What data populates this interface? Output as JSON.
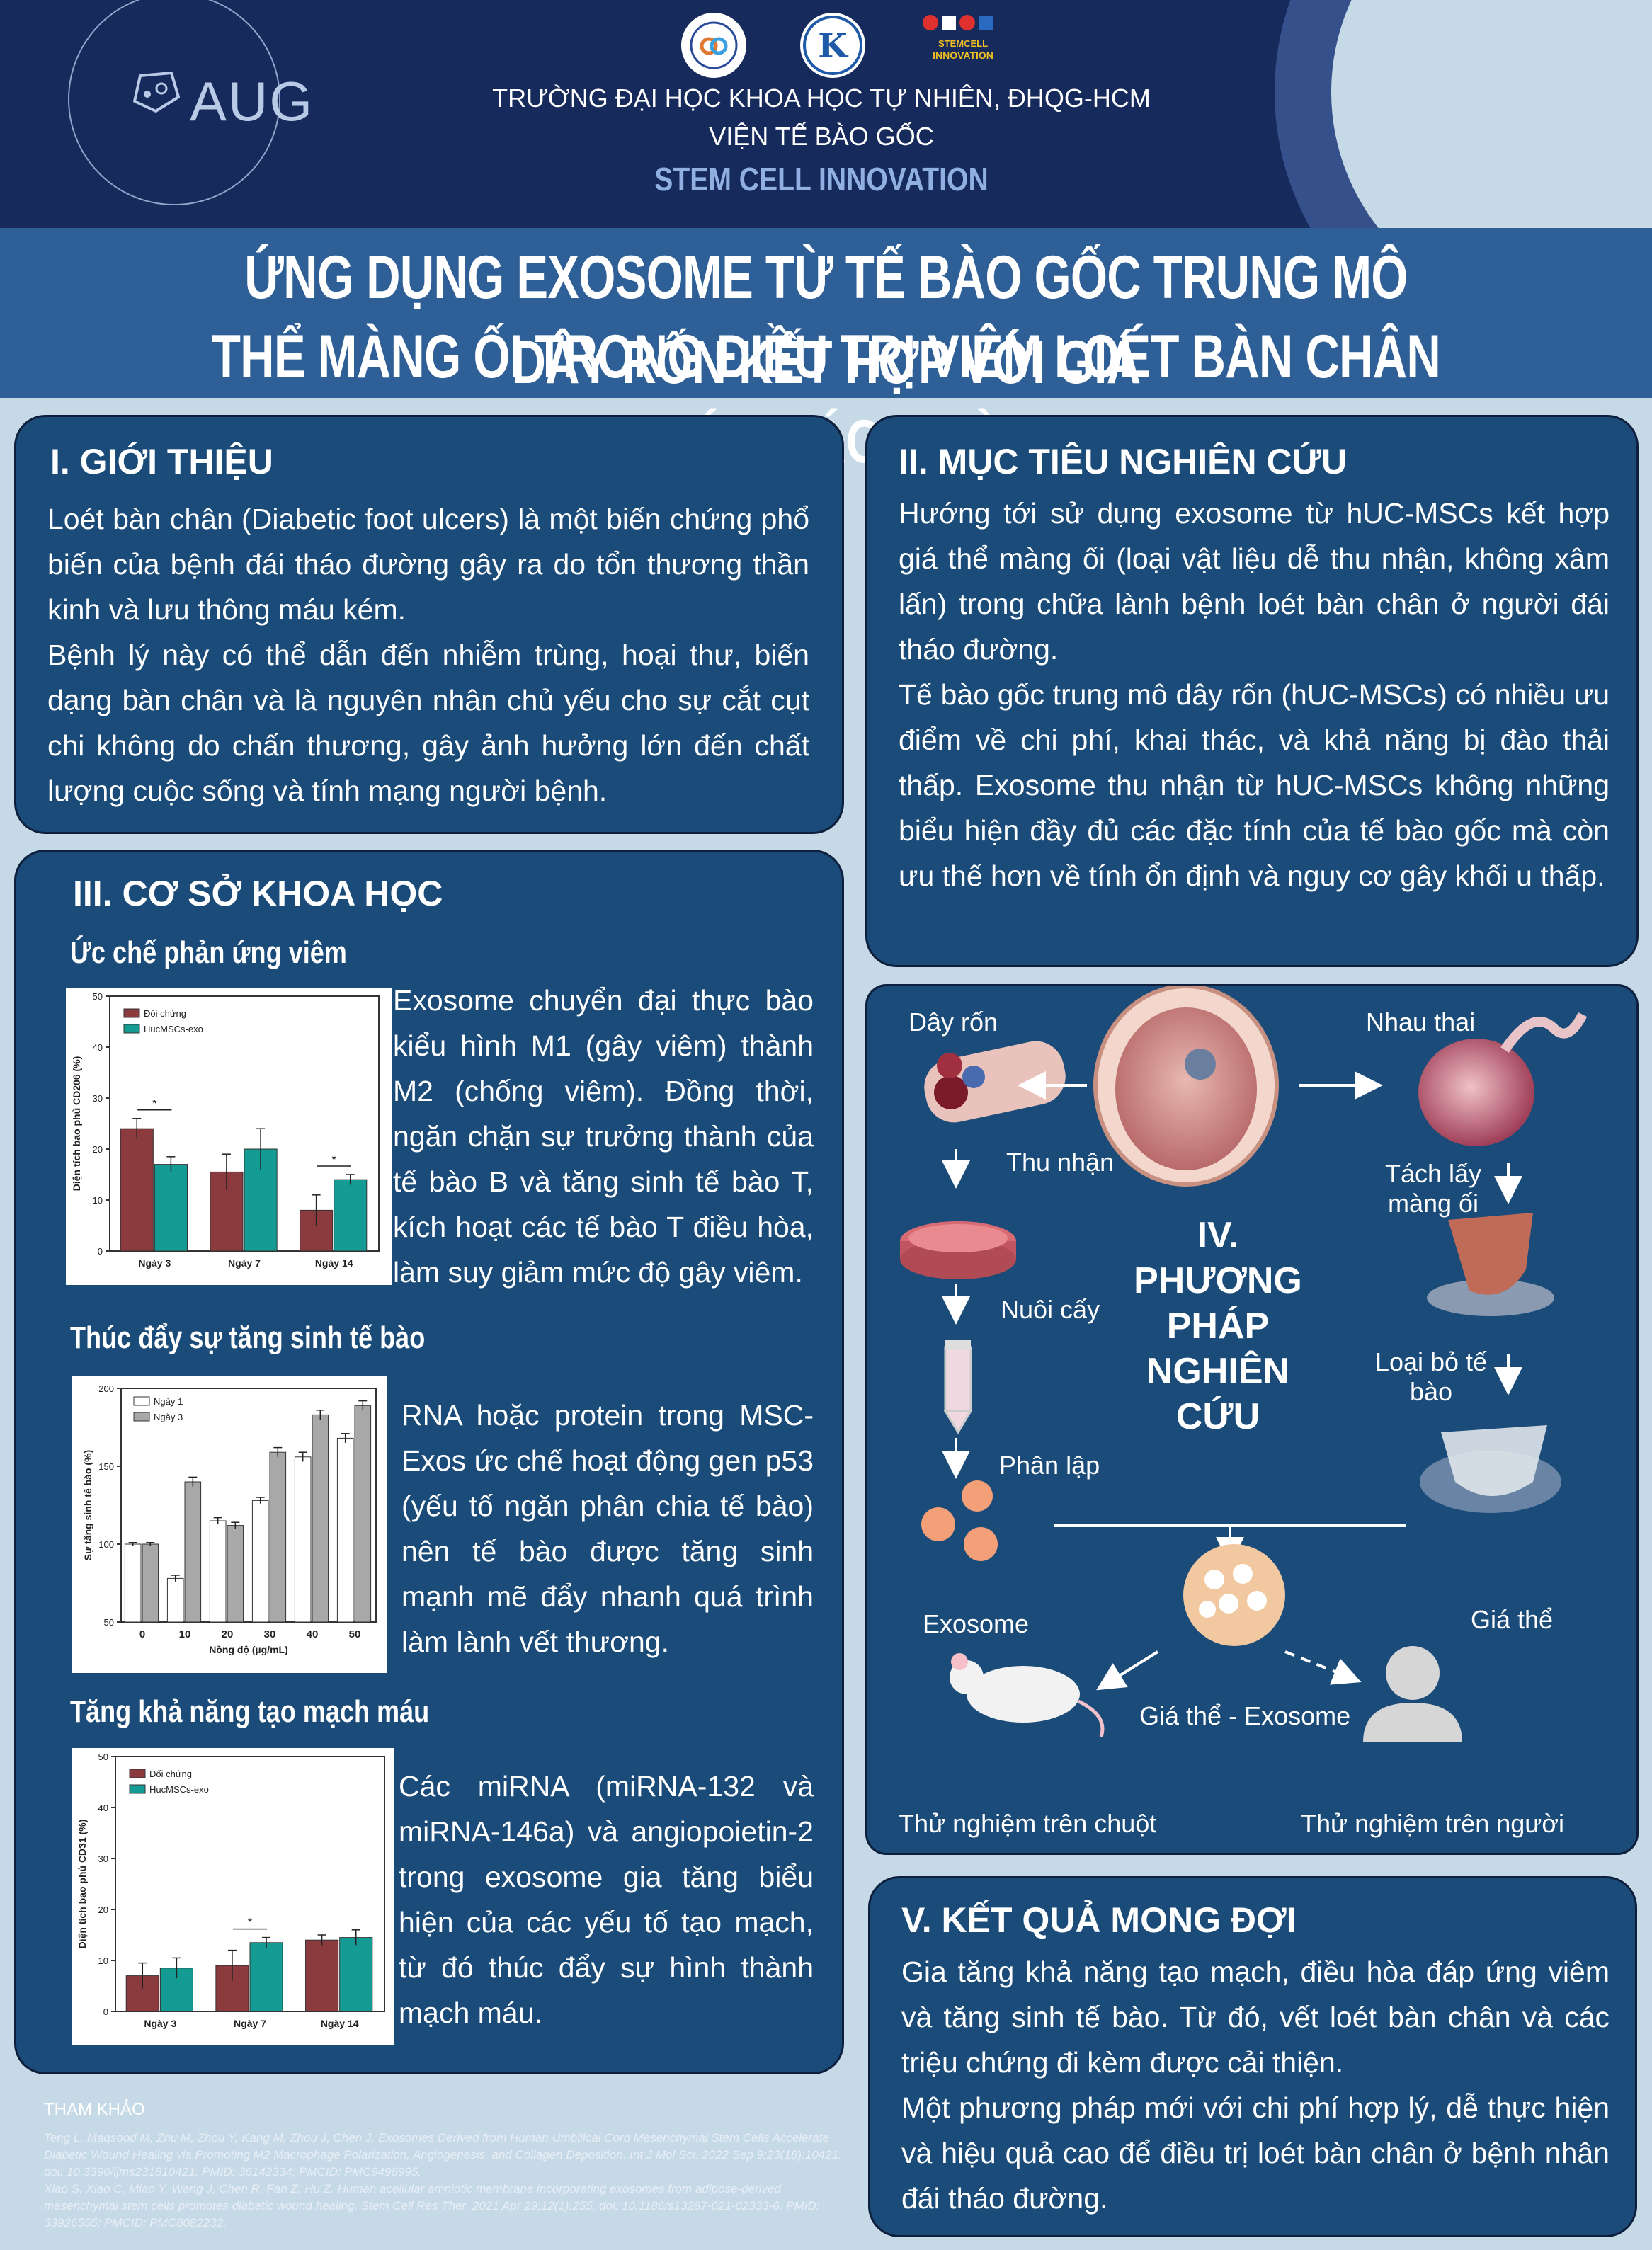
{
  "header": {
    "logo_text": "AUG",
    "university": "TRƯỜNG ĐẠI HỌC KHOA HỌC TỰ NHIÊN, ĐHQG-HCM",
    "institute": "VIỆN TẾ BÀO GỐC",
    "brand": "STEM CELL INNOVATION",
    "partner_logo_text": "INNOVATION"
  },
  "title": {
    "line1": "ỨNG DỤNG EXOSOME TỪ TẾ BÀO GỐC TRUNG MÔ DÂY RỐN KẾT HỢP VỚI GIÁ",
    "line2": "THỂ MÀNG ỐI TRONG ĐIỀU TRỊ VIÊM LOÉT BÀN CHÂN DO ĐÁI THÁO ĐƯỜNG"
  },
  "intro": {
    "heading": "I.  GIỚI THIỆU",
    "p1": "Loét bàn chân (Diabetic foot ulcers) là một biến chứng phổ biến của bệnh đái tháo đường gây ra do tổn thương thần kinh và lưu thông máu kém.",
    "p2": "Bệnh lý này có thể dẫn đến nhiễm trùng, hoại thư, biến dạng bàn chân và là nguyên nhân chủ yếu cho sự cắt cụt chi không do chấn thương, gây ảnh hưởng lớn đến chất lượng cuộc sống và tính mạng người bệnh."
  },
  "objective": {
    "heading": "II.   MỤC TIÊU NGHIÊN CỨU",
    "p1": "Hướng tới sử dụng exosome từ hUC-MSCs kết hợp giá thể màng ối (loại vật liệu dễ thu nhận, không xâm lấn) trong chữa lành bệnh loét bàn chân ở người đái tháo đường.",
    "p2": "Tế bào gốc trung mô dây rốn (hUC-MSCs) có nhiều ưu điểm về chi phí, khai thác, và khả năng bị đào thải thấp. Exosome thu nhận từ hUC-MSCs không những biểu hiện đầy đủ các đặc tính của tế bào gốc mà còn ưu thế hơn về tính ổn định và nguy cơ gây khối u thấp."
  },
  "science": {
    "heading": "III. CƠ SỞ KHOA HỌC",
    "s1_title": "Ức chế phản ứng viêm",
    "s1_text": "Exosome chuyển đại thực bào kiểu hình M1 (gây viêm) thành M2 (chống viêm). Đồng thời, ngăn chặn sự trưởng thành của tế bào B và tăng sinh tế bào T, kích hoạt các tế bào T điều hòa, làm suy giảm mức độ gây viêm.",
    "s2_title": "Thúc đẩy sự tăng sinh tế bào",
    "s2_text": "RNA hoặc protein trong MSC-Exos ức chế hoạt động gen p53 (yếu tố ngăn phân chia tế bào) nên tế bào được tăng sinh mạnh mẽ đẩy nhanh quá trình làm lành vết thương.",
    "s3_title": "Tăng khả năng tạo mạch máu",
    "s3_text": "Các miRNA (miRNA-132 và miRNA-146a) và angiopoietin-2 trong exosome gia tăng biểu hiện của các yếu tố tạo mạch, từ đó thúc đẩy sự hình thành mạch máu."
  },
  "method": {
    "title": "IV. PHƯƠNG PHÁP NGHIÊN CỨU",
    "labels": {
      "cord": "Dây rốn",
      "placenta": "Nhau thai",
      "collect": "Thu nhận",
      "separate": "Tách lấy màng ối",
      "culture": "Nuôi cấy",
      "decell": "Loại bỏ tế bào",
      "isolate": "Phân lập",
      "exosome": "Exosome",
      "scaffold": "Giá thể",
      "combo": "Giá thể - Exosome",
      "mouse": "Thử nghiệm trên chuột",
      "human": "Thử nghiệm trên người"
    }
  },
  "results": {
    "heading": "V.  KẾT QUẢ MONG ĐỢI",
    "p1": "Gia tăng khả năng tạo mạch, điều hòa đáp ứng viêm và tăng sinh tế bào. Từ đó, vết loét bàn chân và các triệu chứng đi kèm được cải thiện.",
    "p2": "Một phương pháp mới với chi phí hợp lý, dễ thực hiện và hiệu quả cao để điều trị loét bàn chân ở bệnh nhân đái tháo đường."
  },
  "references": {
    "heading": "THAM KHẢO",
    "r1": "Teng L, Maqsood M, Zhu M, Zhou Y, Kang M, Zhou J, Chen J. Exosomes Derived from Human Umbilical Cord Mesenchymal Stem Cells Accelerate Diabetic Wound Healing via Promoting M2 Macrophage Polarization, Angiogenesis, and Collagen Deposition. Int J Mol Sci. 2022 Sep 9;23(18):10421. doi: 10.3390/ijms231810421. PMID: 36142334; PMCID: PMC9498995.",
    "r2": "Xiao S, Xiao C, Miao Y, Wang J, Chen R, Fan Z, Hu Z. Human acellular amniotic membrane incorporating exosomes from adipose-derived mesenchymal stem cells promotes diabetic wound healing. Stem Cell Res Ther. 2021 Apr 29;12(1):255. doi: 10.1186/s13287-021-02333-6. PMID: 33926555; PMCID: PMC8082232."
  },
  "chart_data": [
    {
      "type": "bar",
      "ylabel": "Diện tích bao phủ CD206 (%)",
      "categories": [
        "Ngày 3",
        "Ngày 7",
        "Ngày 14"
      ],
      "series": [
        {
          "name": "Đối chứng",
          "values": [
            24,
            15.5,
            8
          ],
          "err": [
            2,
            3.5,
            3
          ],
          "color": "#8b3a3e"
        },
        {
          "name": "HucMSCs-exo",
          "values": [
            17,
            20,
            14
          ],
          "err": [
            1.5,
            4,
            1
          ],
          "color": "#149b93"
        }
      ],
      "ylim": [
        0,
        50
      ],
      "yticks": [
        0,
        10,
        20,
        30,
        40,
        50
      ],
      "sig": [
        "*",
        "",
        "*"
      ]
    },
    {
      "type": "bar",
      "ylabel": "Sự tăng sinh tế bào (%)",
      "xlabel": "Nồng độ (µg/mL)",
      "categories": [
        "0",
        "10",
        "20",
        "30",
        "40",
        "50"
      ],
      "series": [
        {
          "name": "Ngày 1",
          "values": [
            100,
            78,
            115,
            128,
            156,
            168
          ],
          "err": [
            1,
            2,
            2,
            2,
            3,
            3
          ],
          "color": "#ffffff"
        },
        {
          "name": "Ngày 3",
          "values": [
            100,
            140,
            112,
            159,
            183,
            189
          ],
          "err": [
            1,
            3,
            2,
            3,
            3,
            3
          ],
          "color": "#a8a8a8"
        }
      ],
      "ylim": [
        50,
        200
      ],
      "yticks": [
        50,
        100,
        150,
        200
      ]
    },
    {
      "type": "bar",
      "ylabel": "Diện tích bao phủ CD31 (%)",
      "categories": [
        "Ngày 3",
        "Ngày 7",
        "Ngày 14"
      ],
      "series": [
        {
          "name": "Đối chứng",
          "values": [
            7,
            9,
            14
          ],
          "err": [
            2.5,
            3,
            1
          ],
          "color": "#8b3a3e"
        },
        {
          "name": "HucMSCs-exo",
          "values": [
            8.5,
            13.5,
            14.5
          ],
          "err": [
            2,
            1,
            1.5
          ],
          "color": "#149b93"
        }
      ],
      "ylim": [
        0,
        50
      ],
      "yticks": [
        0,
        10,
        20,
        30,
        40,
        50
      ],
      "sig": [
        "",
        "*",
        ""
      ]
    }
  ]
}
